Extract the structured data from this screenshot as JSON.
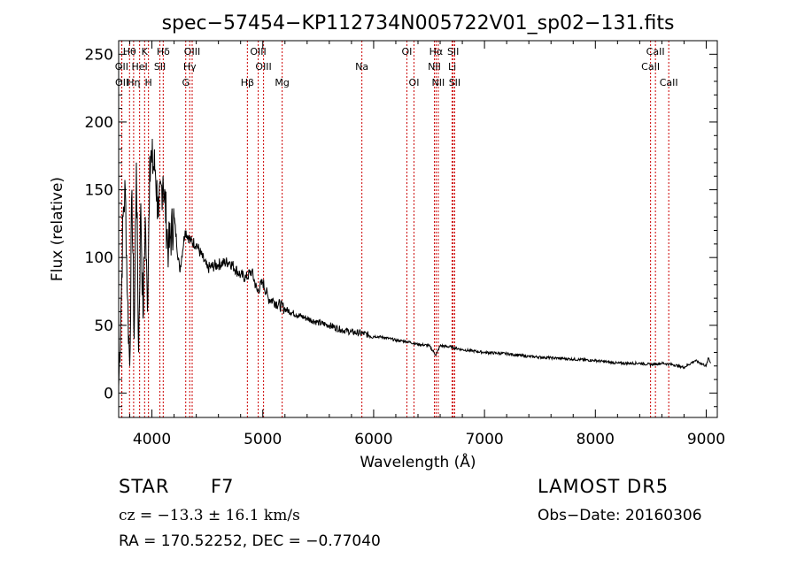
{
  "chart_data": {
    "type": "line",
    "title": "spec−57454−KP112734N005722V01_sp02−131.fits",
    "xlabel": "Wavelength (Å)",
    "ylabel": "Flux (relative)",
    "xlim": [
      3700,
      9100
    ],
    "ylim": [
      -18,
      260
    ],
    "x_ticks": [
      4000,
      5000,
      6000,
      7000,
      8000,
      9000
    ],
    "y_ticks": [
      0,
      50,
      100,
      150,
      200,
      250
    ],
    "grid": false,
    "line_color": "#000000",
    "marker_color": "#cc0000",
    "series": [
      {
        "x": [
          3700,
          3720,
          3740,
          3760,
          3780,
          3800,
          3820,
          3840,
          3860,
          3880,
          3900,
          3920,
          3940,
          3960,
          3980,
          4000,
          4030,
          4060,
          4100,
          4150,
          4200,
          4250,
          4300,
          4350,
          4400,
          4500,
          4600,
          4700,
          4800,
          4850,
          4900,
          4950,
          5000,
          5050,
          5100,
          5200,
          5300,
          5400,
          5500,
          5600,
          5700,
          5800,
          5900,
          6000,
          6100,
          6200,
          6300,
          6400,
          6500,
          6563,
          6600,
          6700,
          6800,
          6900,
          7000,
          7200,
          7400,
          7600,
          7800,
          8000,
          8200,
          8400,
          8500,
          8600,
          8700,
          8800,
          8900,
          8950,
          9000,
          9020,
          9040
        ],
        "y": [
          5,
          60,
          130,
          150,
          70,
          20,
          150,
          40,
          170,
          30,
          140,
          55,
          130,
          60,
          175,
          170,
          165,
          130,
          160,
          105,
          130,
          90,
          120,
          112,
          110,
          92,
          95,
          97,
          87,
          85,
          90,
          75,
          82,
          70,
          68,
          62,
          58,
          55,
          52,
          50,
          47,
          45,
          44,
          42,
          41,
          39,
          38,
          36,
          35,
          28,
          35,
          34,
          32,
          31,
          30,
          29,
          27,
          26,
          25,
          24,
          22,
          22,
          21,
          22,
          21,
          19,
          24,
          22,
          20,
          26,
          22
        ]
      }
    ],
    "lines": [
      {
        "label": "OII",
        "x": 3727,
        "row": 2
      },
      {
        "label": "OII",
        "x": 3729,
        "row": 3
      },
      {
        "label": "Hθ",
        "x": 3798,
        "row": 1
      },
      {
        "label": "Hη",
        "x": 3835,
        "row": 3
      },
      {
        "label": "HeI",
        "x": 3889,
        "row": 2
      },
      {
        "label": "K",
        "x": 3934,
        "row": 1
      },
      {
        "label": "H",
        "x": 3969,
        "row": 3
      },
      {
        "label": "SII",
        "x": 4072,
        "row": 2
      },
      {
        "label": "Hδ",
        "x": 4102,
        "row": 1
      },
      {
        "label": "G",
        "x": 4305,
        "row": 3
      },
      {
        "label": "Hγ",
        "x": 4341,
        "row": 2
      },
      {
        "label": "OIII",
        "x": 4363,
        "row": 1
      },
      {
        "label": "Hβ",
        "x": 4861,
        "row": 3
      },
      {
        "label": "OIII",
        "x": 4959,
        "row": 1
      },
      {
        "label": "OIII",
        "x": 5007,
        "row": 2
      },
      {
        "label": "Mg",
        "x": 5175,
        "row": 3
      },
      {
        "label": "Na",
        "x": 5894,
        "row": 2
      },
      {
        "label": "OI",
        "x": 6300,
        "row": 1
      },
      {
        "label": "OI",
        "x": 6364,
        "row": 3
      },
      {
        "label": "NII",
        "x": 6548,
        "row": 2
      },
      {
        "label": "Hα",
        "x": 6563,
        "row": 1
      },
      {
        "label": "NII",
        "x": 6583,
        "row": 3
      },
      {
        "label": "Li",
        "x": 6708,
        "row": 2
      },
      {
        "label": "SII",
        "x": 6717,
        "row": 1
      },
      {
        "label": "SII",
        "x": 6731,
        "row": 3
      },
      {
        "label": "CaII",
        "x": 8498,
        "row": 2
      },
      {
        "label": "CaII",
        "x": 8542,
        "row": 1
      },
      {
        "label": "CaII",
        "x": 8662,
        "row": 3
      }
    ]
  },
  "info": {
    "star_type": "STAR",
    "subclass": "F7",
    "cz": "cz = −13.3 ± 16.1 km/s",
    "radec": "RA = 170.52252, DEC =  −0.77040",
    "survey": "LAMOST DR5",
    "obs_date": "Obs−Date: 20160306"
  }
}
